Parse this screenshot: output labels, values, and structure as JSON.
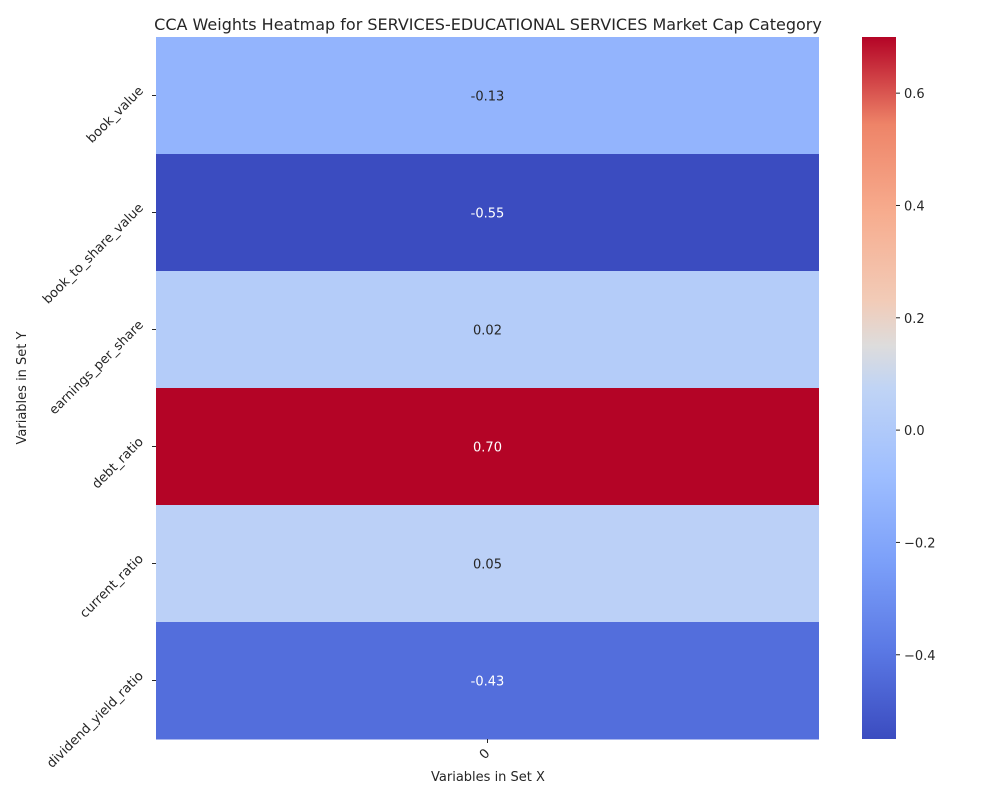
{
  "chart_data": {
    "type": "heatmap",
    "title": "CCA Weights Heatmap for SERVICES-EDUCATIONAL SERVICES Market Cap Category",
    "xlabel": "Variables in Set X",
    "ylabel": "Variables in Set Y",
    "x_categories": [
      "0"
    ],
    "y_categories": [
      "book_value",
      "book_to_share_value",
      "earnings_per_share",
      "debt_ratio",
      "current_ratio",
      "dividend_yield_ratio"
    ],
    "values": [
      -0.13,
      -0.55,
      0.02,
      0.7,
      0.05,
      -0.43
    ],
    "value_labels": [
      "-0.13",
      "-0.55",
      "0.02",
      "0.70",
      "0.05",
      "-0.43"
    ],
    "colormap": "coolwarm",
    "color_range": [
      -0.55,
      0.7
    ],
    "colorbar_ticks": [
      0.6,
      0.4,
      0.2,
      0.0,
      -0.2,
      -0.4
    ],
    "colorbar_tick_labels": [
      "0.6",
      "0.4",
      "0.2",
      "0.0",
      "−0.2",
      "−0.4"
    ]
  }
}
